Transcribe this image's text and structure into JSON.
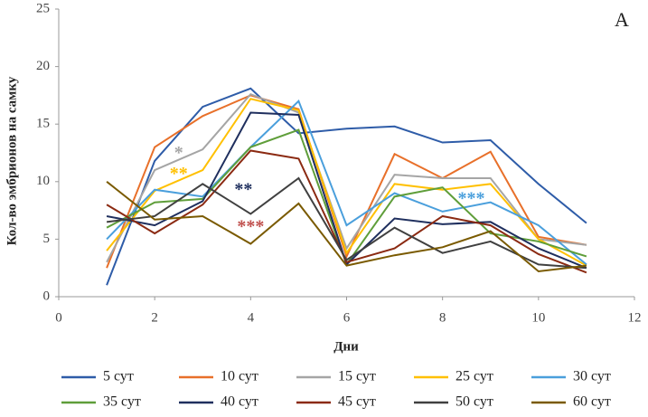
{
  "chart_data": {
    "type": "line",
    "panel_label": "А",
    "x_label": "Дни",
    "y_label": "Кол-во эмбрионов на самку",
    "x": [
      1,
      2,
      3,
      4,
      5,
      6,
      7,
      8,
      9,
      10,
      11
    ],
    "xlim": [
      0,
      12
    ],
    "xticks": [
      0,
      2,
      4,
      6,
      8,
      10,
      12
    ],
    "ylim": [
      0,
      25
    ],
    "yticks": [
      0,
      5,
      10,
      15,
      20,
      25
    ],
    "series": [
      {
        "name": "5 сут",
        "color": "#2e5ca8",
        "values": [
          1,
          11.8,
          16.5,
          18.1,
          14.2,
          14.6,
          14.8,
          13.4,
          13.6,
          9.8,
          6.4
        ]
      },
      {
        "name": "10 сут",
        "color": "#e8702a",
        "values": [
          2.5,
          13,
          15.7,
          17.5,
          16.3,
          3.5,
          12.4,
          10.3,
          12.6,
          5.2,
          4.5
        ]
      },
      {
        "name": "15 сут",
        "color": "#a5a5a5",
        "values": [
          3,
          11,
          12.8,
          17.6,
          16,
          4.2,
          10.6,
          10.3,
          10.3,
          5,
          4.5
        ]
      },
      {
        "name": "25 сут",
        "color": "#ffc000",
        "values": [
          4,
          9.2,
          11,
          17.2,
          16.2,
          3.8,
          9.8,
          9.3,
          9.8,
          5,
          2.7
        ]
      },
      {
        "name": "30 сут",
        "color": "#4a9fdc",
        "values": [
          5,
          9.3,
          8.7,
          13,
          17,
          6.2,
          9,
          7.4,
          8.2,
          6.2,
          2.8
        ]
      },
      {
        "name": "35 сут",
        "color": "#5f9e3a",
        "values": [
          6,
          8.2,
          8.5,
          13,
          14.5,
          2.8,
          8.7,
          9.5,
          5.5,
          4.8,
          3.5
        ]
      },
      {
        "name": "40 сут",
        "color": "#1f2f5e",
        "values": [
          7,
          6.2,
          8.3,
          16,
          15.8,
          2.8,
          6.8,
          6.3,
          6.5,
          4.2,
          2.5
        ]
      },
      {
        "name": "45 сут",
        "color": "#8b2a12",
        "values": [
          8,
          5.5,
          8,
          12.7,
          12,
          3,
          4.2,
          7,
          6.2,
          3.7,
          2.1
        ]
      },
      {
        "name": "50 сут",
        "color": "#404040",
        "values": [
          6.5,
          7,
          9.8,
          7.2,
          10.3,
          3.2,
          6,
          3.8,
          4.8,
          2.8,
          2.5
        ]
      },
      {
        "name": "60 сут",
        "color": "#7a5a00",
        "values": [
          10,
          6.7,
          7,
          4.6,
          8.1,
          2.7,
          3.6,
          4.3,
          5.7,
          2.2,
          2.7
        ]
      }
    ],
    "annotations": [
      {
        "text": "*",
        "color": "#a5a5a5"
      },
      {
        "text": "**",
        "color": "#ffc000"
      },
      {
        "text": "**",
        "color": "#1f2f5e"
      },
      {
        "text": "***",
        "color": "#c0504d"
      },
      {
        "text": "***",
        "color": "#4a9fdc"
      }
    ]
  }
}
